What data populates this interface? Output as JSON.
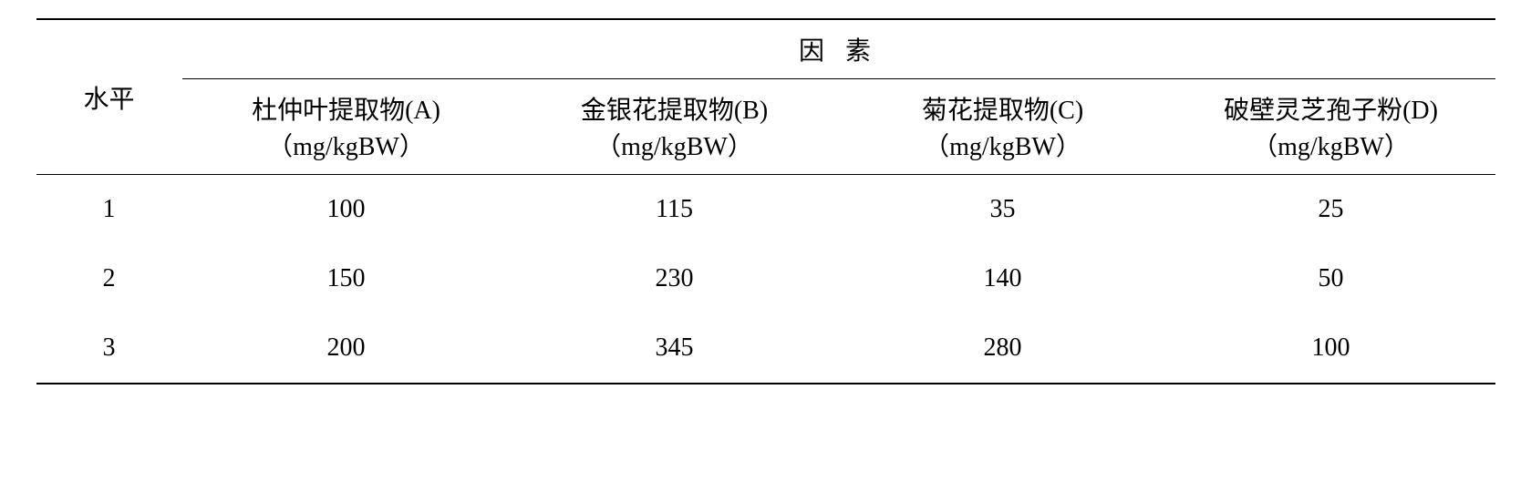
{
  "table": {
    "level_header": "水平",
    "factor_header": "因 素",
    "sub_headers": [
      {
        "line1": "杜仲叶提取物(A)",
        "line2": "（mg/kgBW）"
      },
      {
        "line1": "金银花提取物(B)",
        "line2": "（mg/kgBW）"
      },
      {
        "line1": "菊花提取物(C)",
        "line2": "（mg/kgBW）"
      },
      {
        "line1": "破壁灵芝孢子粉(D)",
        "line2": "（mg/kgBW）"
      }
    ],
    "rows": [
      {
        "level": "1",
        "values": [
          "100",
          "115",
          "35",
          "25"
        ]
      },
      {
        "level": "2",
        "values": [
          "150",
          "230",
          "140",
          "50"
        ]
      },
      {
        "level": "3",
        "values": [
          "200",
          "345",
          "280",
          "100"
        ]
      }
    ]
  }
}
